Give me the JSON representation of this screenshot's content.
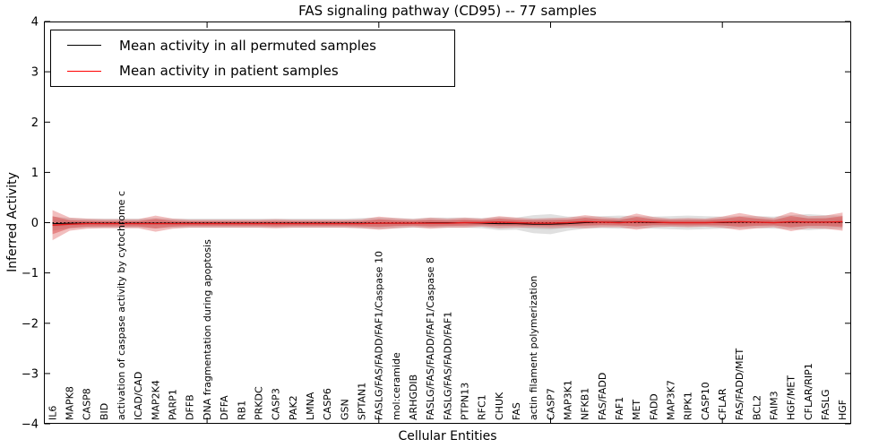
{
  "figure": {
    "title": "FAS signaling pathway (CD95) -- 77 samples",
    "xlabel": "Cellular Entities",
    "ylabel": "Inferred Activity",
    "legend": [
      {
        "label": "Mean activity in all permuted samples",
        "color": "#000000"
      },
      {
        "label": "Mean activity in patient samples",
        "color": "#ff0000"
      }
    ]
  },
  "colors": {
    "patient_band": "#d93a3a",
    "patient_line": "#e51a1a",
    "permuted_band": "#999999",
    "permuted_line": "#000000",
    "axis": "#000000"
  },
  "chart_data": {
    "type": "area",
    "title": "FAS signaling pathway (CD95) -- 77 samples",
    "xlabel": "Cellular Entities",
    "ylabel": "Inferred Activity",
    "ylim": [
      -4,
      4
    ],
    "ytick_labels": [
      "4",
      "3",
      "2",
      "1",
      "0",
      "−1",
      "−2",
      "−3",
      "−4"
    ],
    "ytick_values": [
      4,
      3,
      2,
      1,
      0,
      -1,
      -2,
      -3,
      -4
    ],
    "xtick_major_indices": [
      9,
      19,
      29,
      39
    ],
    "grid": false,
    "legend_position": "upper left",
    "zero_line": 0,
    "categories": [
      "IL6",
      "MAPK8",
      "CASP8",
      "BID",
      "activation of caspase activity by cytochrome c",
      "ICAD/CAD",
      "MAP2K4",
      "PARP1",
      "DFFB",
      "DNA fragmentation during apoptosis",
      "DFFA",
      "RB1",
      "PRKDC",
      "CASP3",
      "PAK2",
      "LMNA",
      "CASP6",
      "GSN",
      "SPTAN1",
      "FASLG/FAS/FADD/FAF1/Caspase 10",
      "mol:ceramide",
      "ARHGDIB",
      "FASLG/FAS/FADD/FAF1/Caspase 8",
      "FASLG/FAS/FADD/FAF1",
      "PTPN13",
      "RFC1",
      "CHUK",
      "FAS",
      "actin filament polymerization",
      "CASP7",
      "MAP3K1",
      "NFKB1",
      "FAS/FADD",
      "FAF1",
      "MET",
      "FADD",
      "MAP3K7",
      "RIPK1",
      "CASP10",
      "CFLAR",
      "FAS/FADD/MET",
      "BCL2",
      "FAIM3",
      "HGF/MET",
      "CFLAR/RIP1",
      "FASLG",
      "HGF"
    ],
    "series": [
      {
        "name": "Mean activity in all permuted samples",
        "role": "permuted_mean",
        "color": "#000000",
        "values": [
          -0.02,
          -0.01,
          -0.01,
          -0.01,
          -0.01,
          -0.01,
          -0.01,
          -0.01,
          -0.01,
          -0.01,
          -0.01,
          -0.01,
          -0.01,
          -0.01,
          -0.01,
          -0.01,
          -0.01,
          -0.01,
          -0.01,
          -0.01,
          -0.01,
          -0.01,
          0,
          0,
          0,
          -0.01,
          -0.02,
          -0.02,
          -0.03,
          -0.03,
          -0.02,
          0,
          0.01,
          0.01,
          0.01,
          0,
          0,
          0,
          0,
          0,
          0.01,
          0.01,
          0,
          0.01,
          0.01,
          0.01,
          0.01
        ]
      },
      {
        "name": "Mean activity in patient samples",
        "role": "patient_mean",
        "color": "#ff0000",
        "values": [
          -0.05,
          -0.03,
          -0.02,
          -0.02,
          -0.02,
          -0.02,
          -0.02,
          -0.02,
          -0.02,
          -0.02,
          -0.02,
          -0.02,
          -0.02,
          -0.02,
          -0.02,
          -0.02,
          -0.02,
          -0.02,
          -0.02,
          -0.01,
          -0.01,
          -0.01,
          -0.01,
          -0.01,
          0,
          0,
          0.01,
          0,
          -0.01,
          -0.01,
          0,
          0.02,
          0.01,
          0,
          0.02,
          0.01,
          0,
          0,
          0,
          0.01,
          0.02,
          0.01,
          0,
          0.02,
          0.01,
          0.01,
          0.02
        ]
      },
      {
        "name": "Permuted activity band half-width",
        "role": "permuted_band_halfwidth",
        "color": "#999999",
        "values": [
          0.14,
          0.1,
          0.09,
          0.09,
          0.09,
          0.09,
          0.1,
          0.09,
          0.09,
          0.09,
          0.09,
          0.09,
          0.09,
          0.09,
          0.09,
          0.09,
          0.09,
          0.09,
          0.1,
          0.11,
          0.1,
          0.09,
          0.1,
          0.1,
          0.1,
          0.1,
          0.13,
          0.12,
          0.18,
          0.2,
          0.14,
          0.12,
          0.12,
          0.13,
          0.12,
          0.12,
          0.13,
          0.14,
          0.13,
          0.12,
          0.12,
          0.12,
          0.12,
          0.14,
          0.16,
          0.14,
          0.13
        ]
      },
      {
        "name": "Patient activity band half-width",
        "role": "patient_band_halfwidth",
        "color": "#d93a3a",
        "values": [
          0.3,
          0.13,
          0.1,
          0.09,
          0.09,
          0.09,
          0.16,
          0.1,
          0.08,
          0.08,
          0.08,
          0.08,
          0.08,
          0.09,
          0.08,
          0.08,
          0.08,
          0.08,
          0.09,
          0.13,
          0.1,
          0.08,
          0.11,
          0.09,
          0.1,
          0.08,
          0.12,
          0.1,
          0.09,
          0.1,
          0.1,
          0.13,
          0.1,
          0.09,
          0.16,
          0.1,
          0.08,
          0.09,
          0.08,
          0.11,
          0.17,
          0.12,
          0.09,
          0.19,
          0.12,
          0.13,
          0.18
        ]
      }
    ]
  }
}
